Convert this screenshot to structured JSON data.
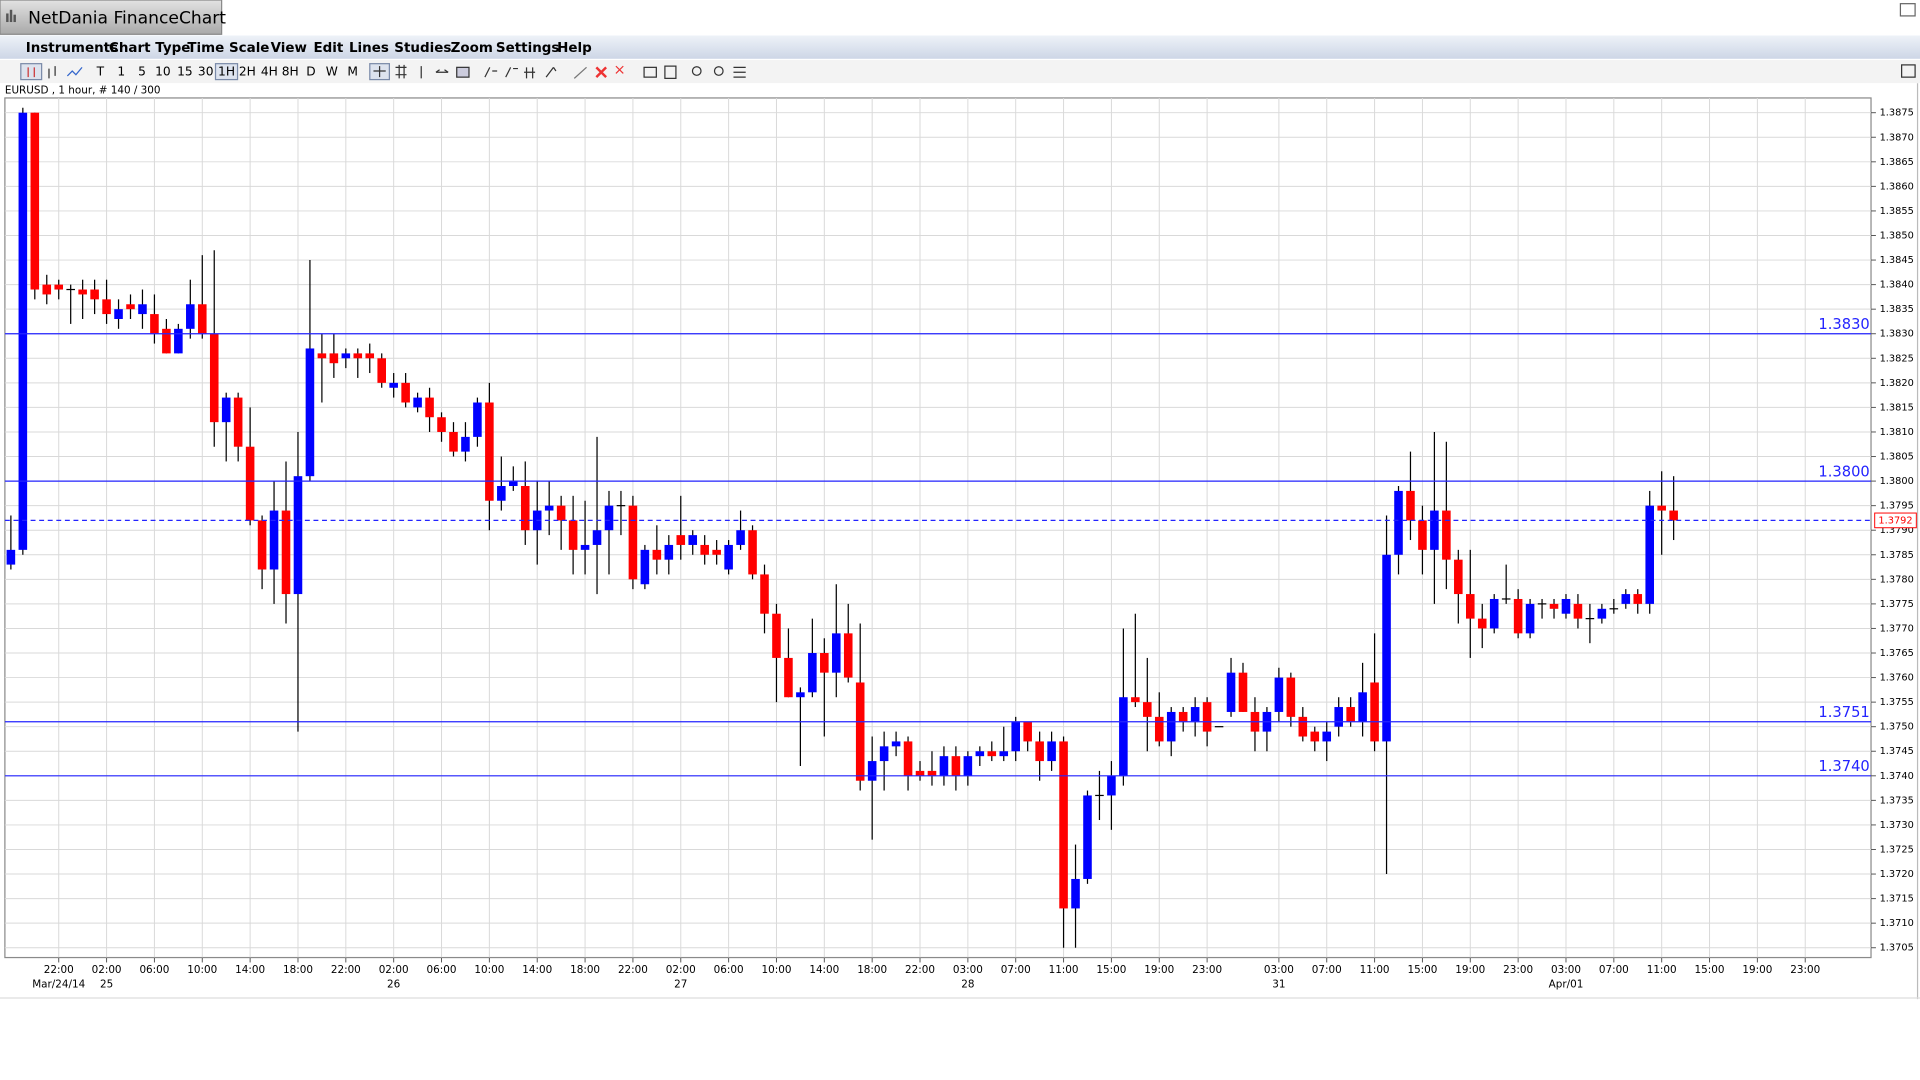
{
  "window": {
    "title": "NetDania FinanceChart"
  },
  "menu": [
    "Instruments",
    "Chart Type",
    "Time Scale",
    "View",
    "Edit",
    "Lines",
    "Studies",
    "Zoom",
    "Settings",
    "Help"
  ],
  "toolbar": [
    "T",
    "1",
    "5",
    "10",
    "15",
    "30",
    "1H",
    "2H",
    "4H",
    "8H",
    "D",
    "W",
    "M"
  ],
  "chart_data": {
    "type": "candlestick",
    "title": "EURUSD , 1 hour, # 140 / 300",
    "categories": [
      null,
      null,
      null,
      null,
      "22:00",
      null,
      null,
      null,
      "02:00",
      null,
      null,
      null,
      "06:00",
      null,
      null,
      null,
      "10:00",
      null,
      null,
      null,
      "14:00",
      null,
      null,
      null,
      "18:00",
      null,
      null,
      null,
      "22:00",
      null,
      null,
      null,
      "02:00",
      null,
      null,
      null,
      "06:00",
      null,
      null,
      null,
      "10:00",
      null,
      null,
      null,
      "14:00",
      null,
      null,
      null,
      "18:00",
      null,
      null,
      null,
      "22:00",
      null,
      null,
      null,
      "02:00",
      null,
      null,
      null,
      "06:00",
      null,
      null,
      null,
      "10:00",
      null,
      null,
      null,
      "14:00",
      null,
      null,
      null,
      "18:00",
      null,
      null,
      null,
      "22:00",
      null,
      null,
      null,
      "03:00",
      null,
      null,
      null,
      "07:00",
      null,
      null,
      null,
      "11:00",
      null,
      null,
      null,
      "15:00",
      null,
      null,
      null,
      "19:00",
      null,
      null,
      null,
      "23:00",
      null,
      null,
      null,
      null,
      null,
      "03:00",
      null,
      null,
      null,
      "07:00",
      null,
      null,
      null,
      "11:00",
      null,
      null,
      null,
      "15:00",
      null,
      null,
      null,
      "19:00",
      null,
      null,
      null,
      "23:00",
      null,
      null,
      null,
      "03:00",
      null,
      null,
      null,
      "07:00",
      null,
      null,
      null,
      "11:00",
      null,
      null,
      null,
      "15:00",
      null,
      null,
      null,
      "19:00",
      null,
      null,
      null,
      "23:00",
      null,
      null,
      null,
      null,
      null
    ],
    "date_labels": [
      null,
      null,
      null,
      null,
      "Mar/24/14",
      null,
      null,
      null,
      "25",
      null,
      null,
      null,
      null,
      null,
      null,
      null,
      null,
      null,
      null,
      null,
      null,
      null,
      null,
      null,
      null,
      null,
      null,
      null,
      null,
      null,
      null,
      null,
      "26",
      null,
      null,
      null,
      null,
      null,
      null,
      null,
      null,
      null,
      null,
      null,
      null,
      null,
      null,
      null,
      null,
      null,
      null,
      null,
      null,
      null,
      null,
      null,
      "27",
      null,
      null,
      null,
      null,
      null,
      null,
      null,
      null,
      null,
      null,
      null,
      null,
      null,
      null,
      null,
      null,
      null,
      null,
      null,
      null,
      null,
      null,
      null,
      "28",
      null,
      null,
      null,
      null,
      null,
      null,
      null,
      null,
      null,
      null,
      null,
      null,
      null,
      null,
      null,
      null,
      null,
      null,
      null,
      null,
      null,
      null,
      null,
      null,
      null,
      "31",
      null,
      null,
      null,
      null,
      null,
      null,
      null,
      null,
      null,
      null,
      null,
      null,
      null,
      null,
      null,
      null,
      null,
      null,
      null,
      null,
      null,
      null,
      null,
      "Apr/01",
      null,
      null,
      null,
      null,
      null,
      null,
      null,
      null,
      null,
      null,
      null,
      null,
      null,
      null,
      null,
      null,
      null,
      null,
      null,
      null,
      null,
      null,
      null,
      null,
      null
    ],
    "open": [
      1.3783,
      1.3786,
      1.3875,
      1.384,
      1.384,
      1.3839,
      1.3839,
      1.3839,
      1.3837,
      1.3833,
      1.3836,
      1.3834,
      1.3834,
      1.3831,
      1.3826,
      1.3831,
      1.3836,
      1.383,
      1.3812,
      1.3817,
      1.3807,
      1.3792,
      1.3782,
      1.3794,
      1.3777,
      1.3801,
      1.3826,
      1.3826,
      1.3825,
      1.3826,
      1.3826,
      1.3825,
      1.3819,
      1.382,
      1.3815,
      1.3817,
      1.3813,
      1.381,
      1.3806,
      1.3809,
      1.3816,
      1.3796,
      1.3799,
      1.3799,
      1.379,
      1.3794,
      1.3795,
      1.3792,
      1.3786,
      1.3787,
      1.379,
      1.3795,
      1.3795,
      1.3779,
      1.3786,
      1.3784,
      1.3789,
      1.3787,
      1.3787,
      1.3786,
      1.3782,
      1.3787,
      1.379,
      1.3781,
      1.3773,
      1.3764,
      1.3756,
      1.3757,
      1.3765,
      1.3761,
      1.3769,
      1.3759,
      1.3739,
      1.3743,
      1.3746,
      1.3747,
      1.3741,
      1.3741,
      1.374,
      1.3744,
      1.374,
      1.3744,
      1.3745,
      1.3744,
      1.3745,
      1.3751,
      1.3747,
      1.3743,
      1.3747,
      1.3713,
      1.3719,
      1.3736,
      1.3736,
      1.374,
      1.3756,
      1.3755,
      1.3752,
      1.3747,
      1.3753,
      1.3751,
      1.3755,
      1.375,
      1.3753,
      1.3761,
      1.3753,
      1.3749,
      1.3753,
      1.376,
      1.3752,
      1.3749,
      1.3747,
      1.375,
      1.3754,
      1.3751,
      1.3759,
      1.3747,
      1.3785,
      1.3798,
      1.3792,
      1.3786,
      1.3794,
      1.3784,
      1.3777,
      1.3772,
      1.377,
      1.3776,
      1.3776,
      1.3769,
      1.3775,
      1.3775,
      1.3773,
      1.3775,
      1.3772,
      1.3772,
      1.3774,
      1.3775,
      1.3777,
      1.3775,
      1.3795,
      1.3794,
      null,
      null,
      null,
      null,
      null,
      null,
      null,
      null,
      null,
      null,
      null,
      null,
      null,
      null,
      null,
      null
    ],
    "high": [
      1.3793,
      1.3876,
      1.3875,
      1.3842,
      1.3841,
      1.384,
      1.3841,
      1.3841,
      1.3841,
      1.3837,
      1.3838,
      1.3839,
      1.3838,
      1.3833,
      1.3832,
      1.3841,
      1.3846,
      1.3847,
      1.3818,
      1.3818,
      1.3815,
      1.3793,
      1.38,
      1.3804,
      1.381,
      1.3845,
      1.383,
      1.383,
      1.3827,
      1.3827,
      1.3828,
      1.3826,
      1.3822,
      1.3822,
      1.3818,
      1.3819,
      1.3814,
      1.3812,
      1.3812,
      1.3817,
      1.382,
      1.3805,
      1.3803,
      1.3804,
      1.38,
      1.38,
      1.3797,
      1.3797,
      1.3796,
      1.3809,
      1.3798,
      1.3798,
      1.3797,
      1.3787,
      1.3791,
      1.3789,
      1.3797,
      1.379,
      1.3789,
      1.3788,
      1.3788,
      1.3794,
      1.3791,
      1.3783,
      1.3775,
      1.377,
      1.3758,
      1.3772,
      1.3768,
      1.3779,
      1.3775,
      1.3771,
      1.3748,
      1.3749,
      1.3749,
      1.3748,
      1.3743,
      1.3745,
      1.3746,
      1.3746,
      1.3745,
      1.3746,
      1.3747,
      1.375,
      1.3752,
      1.3751,
      1.3749,
      1.3749,
      1.3748,
      1.3726,
      1.3737,
      1.3741,
      1.3743,
      1.377,
      1.3773,
      1.3764,
      1.3757,
      1.3754,
      1.3754,
      1.3756,
      1.3756,
      1.375,
      1.3764,
      1.3763,
      1.3756,
      1.3754,
      1.3762,
      1.3761,
      1.3754,
      1.375,
      1.3751,
      1.3756,
      1.3756,
      1.3763,
      1.3769,
      1.3793,
      1.3799,
      1.3806,
      1.3795,
      1.381,
      1.3808,
      1.3786,
      1.3786,
      1.3775,
      1.3777,
      1.3783,
      1.3778,
      1.3776,
      1.3776,
      1.3776,
      1.3777,
      1.3777,
      1.3775,
      1.3775,
      1.3776,
      1.3778,
      1.3778,
      1.3798,
      1.3802,
      1.3801,
      null,
      null,
      null,
      null,
      null,
      null,
      null,
      null,
      null,
      null,
      null,
      null,
      null,
      null,
      null,
      null
    ],
    "low": [
      1.3782,
      1.3785,
      1.3837,
      1.3836,
      1.3837,
      1.3832,
      1.3833,
      1.3834,
      1.3832,
      1.3831,
      1.3833,
      1.3831,
      1.3828,
      1.3826,
      1.3826,
      1.3829,
      1.3829,
      1.3807,
      1.3804,
      1.3804,
      1.3791,
      1.3778,
      1.3775,
      1.3771,
      1.3749,
      1.38,
      1.3816,
      1.3821,
      1.3823,
      1.3821,
      1.3822,
      1.3819,
      1.3817,
      1.3815,
      1.3814,
      1.381,
      1.3808,
      1.3805,
      1.3804,
      1.3807,
      1.379,
      1.3794,
      1.3798,
      1.3787,
      1.3783,
      1.3789,
      1.3786,
      1.3781,
      1.3781,
      1.3777,
      1.3781,
      1.3789,
      1.3778,
      1.3778,
      1.3781,
      1.3781,
      1.3784,
      1.3785,
      1.3783,
      1.3783,
      1.3781,
      1.3786,
      1.378,
      1.3769,
      1.3755,
      1.3756,
      1.3742,
      1.3756,
      1.3748,
      1.3756,
      1.3759,
      1.3737,
      1.3727,
      1.3737,
      1.3744,
      1.3737,
      1.3739,
      1.3738,
      1.3738,
      1.3737,
      1.3738,
      1.3742,
      1.3743,
      1.3743,
      1.3743,
      1.3745,
      1.3739,
      1.3741,
      1.3705,
      1.3705,
      1.3718,
      1.3731,
      1.3729,
      1.3738,
      1.3754,
      1.3745,
      1.3746,
      1.3744,
      1.3749,
      1.3748,
      1.3746,
      1.375,
      1.3752,
      1.3753,
      1.3745,
      1.3745,
      1.3751,
      1.375,
      1.3747,
      1.3745,
      1.3743,
      1.3748,
      1.375,
      1.3748,
      1.3745,
      1.372,
      1.3781,
      1.3788,
      1.3781,
      1.3775,
      1.3778,
      1.3771,
      1.3764,
      1.3766,
      1.3769,
      1.3775,
      1.3768,
      1.3768,
      1.3772,
      1.3772,
      1.3772,
      1.377,
      1.3767,
      1.3771,
      1.3773,
      1.3774,
      1.3773,
      1.3773,
      1.3785,
      1.3788,
      null,
      null,
      null,
      null,
      null,
      null,
      null,
      null,
      null,
      null,
      null,
      null,
      null,
      null,
      null,
      null
    ],
    "close": [
      1.3786,
      1.3875,
      1.3839,
      1.3838,
      1.3839,
      1.3839,
      1.3838,
      1.3837,
      1.3834,
      1.3835,
      1.3835,
      1.3836,
      1.383,
      1.3826,
      1.3831,
      1.3836,
      1.383,
      1.3812,
      1.3817,
      1.3807,
      1.3792,
      1.3782,
      1.3794,
      1.3777,
      1.3801,
      1.3827,
      1.3825,
      1.3824,
      1.3826,
      1.3825,
      1.3825,
      1.382,
      1.382,
      1.3816,
      1.3817,
      1.3813,
      1.381,
      1.3806,
      1.3809,
      1.3816,
      1.3796,
      1.3799,
      1.38,
      1.379,
      1.3794,
      1.3795,
      1.3792,
      1.3786,
      1.3787,
      1.379,
      1.3795,
      1.3795,
      1.378,
      1.3786,
      1.3784,
      1.3787,
      1.3787,
      1.3789,
      1.3785,
      1.3785,
      1.3787,
      1.379,
      1.3781,
      1.3773,
      1.3764,
      1.3756,
      1.3757,
      1.3765,
      1.3761,
      1.3769,
      1.376,
      1.3739,
      1.3743,
      1.3746,
      1.3747,
      1.374,
      1.374,
      1.374,
      1.3744,
      1.374,
      1.3744,
      1.3745,
      1.3744,
      1.3745,
      1.3751,
      1.3747,
      1.3743,
      1.3747,
      1.3713,
      1.3719,
      1.3736,
      1.3736,
      1.374,
      1.3756,
      1.3755,
      1.3752,
      1.3747,
      1.3753,
      1.3751,
      1.3754,
      1.3749,
      1.375,
      1.3761,
      1.3753,
      1.3749,
      1.3753,
      1.376,
      1.3752,
      1.3748,
      1.3747,
      1.3749,
      1.3754,
      1.3751,
      1.3757,
      1.3747,
      1.3785,
      1.3798,
      1.3792,
      1.3786,
      1.3794,
      1.3784,
      1.3777,
      1.3772,
      1.377,
      1.3776,
      1.3776,
      1.3769,
      1.3775,
      1.3775,
      1.3774,
      1.3776,
      1.3772,
      1.3772,
      1.3774,
      1.3774,
      1.3777,
      1.3775,
      1.3795,
      1.3794,
      1.3792,
      null,
      null,
      null,
      null,
      null,
      null,
      null,
      null,
      null,
      null,
      null,
      null,
      null,
      null,
      null,
      null
    ],
    "up_color": "#0000ff",
    "down_color": "#ff0000",
    "wick_color": "#000000",
    "ylim": [
      1.3703,
      1.3878
    ],
    "yticks": [
      1.3705,
      {
        "value": 1.371,
        "label": "1.3710"
      },
      1.3715,
      {
        "value": 1.372,
        "label": "1.3720"
      },
      1.3725,
      {
        "value": 1.373,
        "label": "1.3730"
      },
      1.3735,
      {
        "value": 1.374,
        "label": "1.3740"
      },
      1.3745,
      {
        "value": 1.375,
        "label": "1.3750"
      },
      1.3755,
      {
        "value": 1.376,
        "label": "1.3760"
      },
      1.3765,
      {
        "value": 1.377,
        "label": "1.3770"
      },
      1.3775,
      {
        "value": 1.378,
        "label": "1.3780"
      },
      1.3785,
      {
        "value": 1.379,
        "label": "1.3790"
      },
      1.3795,
      {
        "value": 1.38,
        "label": "1.3800"
      },
      1.3805,
      {
        "value": 1.381,
        "label": "1.3810"
      },
      1.3815,
      {
        "value": 1.382,
        "label": "1.3820"
      },
      1.3825,
      {
        "value": 1.383,
        "label": "1.3830"
      },
      1.3835,
      {
        "value": 1.384,
        "label": "1.3840"
      },
      1.3845,
      {
        "value": 1.385,
        "label": "1.3850"
      },
      1.3855,
      {
        "value": 1.386,
        "label": "1.3860"
      },
      1.3865,
      {
        "value": 1.387,
        "label": "1.3870"
      },
      1.3875
    ],
    "grid": true,
    "levels": [
      {
        "value": 1.383,
        "label": "1.3830"
      },
      {
        "value": 1.38,
        "label": "1.3800"
      },
      {
        "value": 1.3751,
        "label": "1.3751"
      },
      {
        "value": 1.374,
        "label": "1.3740"
      }
    ],
    "level_color": "#2424ff",
    "last_price": {
      "value": 1.3792,
      "label": "1.3792"
    },
    "last_price_color": "#ff0000"
  }
}
